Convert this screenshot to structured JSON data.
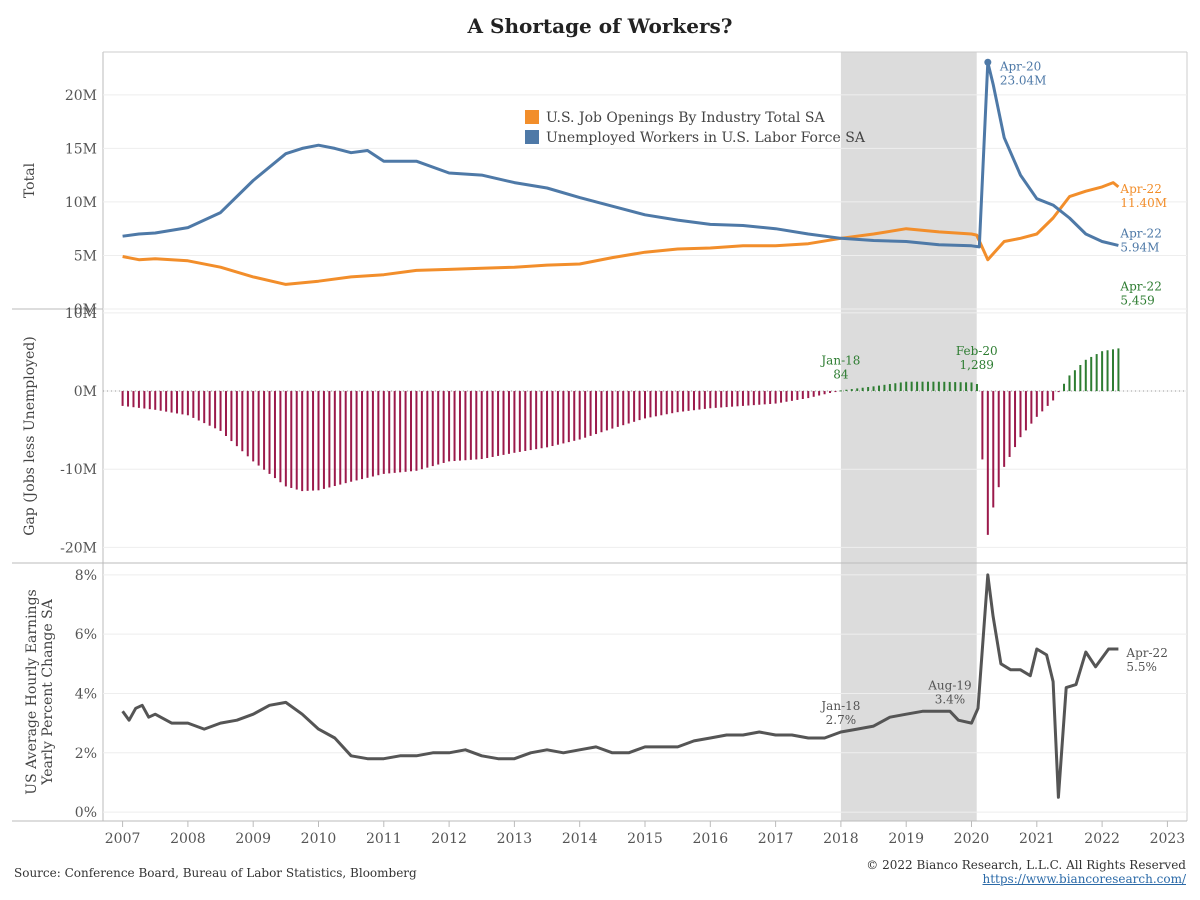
{
  "title": "A Shortage of Workers?",
  "source": "Source: Conference Board, Bureau of Labor Statistics, Bloomberg",
  "copyright": "© 2022 Bianco Research, L.L.C. All Rights Reserved",
  "website": "https://www.biancoresearch.com/",
  "colors": {
    "jobs": "#f28e2b",
    "unemployed": "#4e79a7",
    "gap_neg": "#9b1a4b",
    "gap_pos": "#2e7d32",
    "earnings": "#555555",
    "shade": "#dcdcdc"
  },
  "chart_data": [
    {
      "type": "line",
      "panel": "top",
      "ylabel": "Total",
      "ylim": [
        0,
        24
      ],
      "yticks": [
        {
          "v": 0,
          "label": "0M"
        },
        {
          "v": 5,
          "label": "5M"
        },
        {
          "v": 10,
          "label": "10M"
        },
        {
          "v": 15,
          "label": "15M"
        },
        {
          "v": 20,
          "label": "20M"
        }
      ],
      "legend_position": "top-center",
      "series": [
        {
          "name": "U.S. Job Openings By Industry Total SA",
          "color": "#f28e2b",
          "points": [
            [
              2007.0,
              4.9
            ],
            [
              2007.25,
              4.6
            ],
            [
              2007.5,
              4.7
            ],
            [
              2008.0,
              4.5
            ],
            [
              2008.5,
              3.9
            ],
            [
              2009.0,
              3.0
            ],
            [
              2009.5,
              2.3
            ],
            [
              2010.0,
              2.6
            ],
            [
              2010.5,
              3.0
            ],
            [
              2011.0,
              3.2
            ],
            [
              2011.5,
              3.6
            ],
            [
              2012.0,
              3.7
            ],
            [
              2012.5,
              3.8
            ],
            [
              2013.0,
              3.9
            ],
            [
              2013.5,
              4.1
            ],
            [
              2014.0,
              4.2
            ],
            [
              2014.5,
              4.8
            ],
            [
              2015.0,
              5.3
            ],
            [
              2015.5,
              5.6
            ],
            [
              2016.0,
              5.7
            ],
            [
              2016.5,
              5.9
            ],
            [
              2017.0,
              5.9
            ],
            [
              2017.5,
              6.1
            ],
            [
              2018.0,
              6.6
            ],
            [
              2018.5,
              7.0
            ],
            [
              2019.0,
              7.5
            ],
            [
              2019.5,
              7.2
            ],
            [
              2020.0,
              7.0
            ],
            [
              2020.08,
              6.9
            ],
            [
              2020.25,
              4.6
            ],
            [
              2020.5,
              6.3
            ],
            [
              2020.75,
              6.6
            ],
            [
              2021.0,
              7.0
            ],
            [
              2021.25,
              8.5
            ],
            [
              2021.5,
              10.5
            ],
            [
              2021.75,
              11.0
            ],
            [
              2022.0,
              11.4
            ],
            [
              2022.17,
              11.8
            ],
            [
              2022.25,
              11.4
            ]
          ]
        },
        {
          "name": "Unemployed Workers in U.S. Labor Force SA",
          "color": "#4e79a7",
          "points": [
            [
              2007.0,
              6.8
            ],
            [
              2007.25,
              7.0
            ],
            [
              2007.5,
              7.1
            ],
            [
              2008.0,
              7.6
            ],
            [
              2008.5,
              9.0
            ],
            [
              2009.0,
              12.0
            ],
            [
              2009.5,
              14.5
            ],
            [
              2009.75,
              15.0
            ],
            [
              2010.0,
              15.3
            ],
            [
              2010.25,
              15.0
            ],
            [
              2010.5,
              14.6
            ],
            [
              2010.75,
              14.8
            ],
            [
              2011.0,
              13.8
            ],
            [
              2011.5,
              13.8
            ],
            [
              2012.0,
              12.7
            ],
            [
              2012.5,
              12.5
            ],
            [
              2013.0,
              11.8
            ],
            [
              2013.5,
              11.3
            ],
            [
              2014.0,
              10.4
            ],
            [
              2014.5,
              9.6
            ],
            [
              2015.0,
              8.8
            ],
            [
              2015.5,
              8.3
            ],
            [
              2016.0,
              7.9
            ],
            [
              2016.5,
              7.8
            ],
            [
              2017.0,
              7.5
            ],
            [
              2017.5,
              7.0
            ],
            [
              2018.0,
              6.6
            ],
            [
              2018.5,
              6.4
            ],
            [
              2019.0,
              6.3
            ],
            [
              2019.5,
              6.0
            ],
            [
              2020.0,
              5.9
            ],
            [
              2020.12,
              5.8
            ],
            [
              2020.25,
              23.04
            ],
            [
              2020.33,
              21.0
            ],
            [
              2020.5,
              16.0
            ],
            [
              2020.75,
              12.5
            ],
            [
              2021.0,
              10.3
            ],
            [
              2021.25,
              9.7
            ],
            [
              2021.5,
              8.5
            ],
            [
              2021.75,
              7.0
            ],
            [
              2022.0,
              6.3
            ],
            [
              2022.25,
              5.94
            ]
          ]
        }
      ],
      "annotations": [
        {
          "x": 2020.25,
          "y": 23.04,
          "line1": "Apr-20",
          "line2": "23.04M",
          "color": "#4e79a7"
        },
        {
          "x": 2022.25,
          "y": 11.4,
          "line1": "Apr-22",
          "line2": "11.40M",
          "color": "#f28e2b"
        },
        {
          "x": 2022.25,
          "y": 5.94,
          "line1": "Apr-22",
          "line2": "5.94M",
          "color": "#4e79a7"
        }
      ]
    },
    {
      "type": "bar",
      "panel": "middle",
      "ylabel": "Gap (Jobs less Unemployed)",
      "ylim": [
        -22,
        10.5
      ],
      "yticks": [
        {
          "v": -20,
          "label": "-20M"
        },
        {
          "v": -10,
          "label": "-10M"
        },
        {
          "v": 0,
          "label": "0M"
        },
        {
          "v": 10,
          "label": "10M"
        }
      ],
      "series": [
        {
          "name": "Gap",
          "points": [
            [
              2007.0,
              -1.9
            ],
            [
              2007.5,
              -2.4
            ],
            [
              2008.0,
              -3.1
            ],
            [
              2008.5,
              -5.1
            ],
            [
              2009.0,
              -9.0
            ],
            [
              2009.5,
              -12.2
            ],
            [
              2009.75,
              -12.8
            ],
            [
              2010.0,
              -12.7
            ],
            [
              2010.5,
              -11.6
            ],
            [
              2011.0,
              -10.6
            ],
            [
              2011.5,
              -10.2
            ],
            [
              2012.0,
              -9.0
            ],
            [
              2012.5,
              -8.7
            ],
            [
              2013.0,
              -7.9
            ],
            [
              2013.5,
              -7.2
            ],
            [
              2014.0,
              -6.2
            ],
            [
              2014.5,
              -4.8
            ],
            [
              2015.0,
              -3.5
            ],
            [
              2015.5,
              -2.7
            ],
            [
              2016.0,
              -2.2
            ],
            [
              2016.5,
              -1.9
            ],
            [
              2017.0,
              -1.6
            ],
            [
              2017.5,
              -0.9
            ],
            [
              2018.0,
              0.084
            ],
            [
              2018.5,
              0.6
            ],
            [
              2019.0,
              1.2
            ],
            [
              2019.5,
              1.2
            ],
            [
              2020.0,
              1.1
            ],
            [
              2020.08,
              1.289
            ],
            [
              2020.25,
              -18.4
            ],
            [
              2020.33,
              -15.0
            ],
            [
              2020.5,
              -9.7
            ],
            [
              2020.75,
              -5.9
            ],
            [
              2021.0,
              -3.3
            ],
            [
              2021.25,
              -1.2
            ],
            [
              2021.5,
              2.0
            ],
            [
              2021.75,
              4.0
            ],
            [
              2022.0,
              5.1
            ],
            [
              2022.25,
              5.459
            ]
          ]
        }
      ],
      "annotations": [
        {
          "x": 2018.0,
          "y": 0.084,
          "line1": "Jan-18",
          "line2": "84",
          "color": "#2e7d32"
        },
        {
          "x": 2020.08,
          "y": 1.289,
          "line1": "Feb-20",
          "line2": "1,289",
          "color": "#2e7d32"
        },
        {
          "x": 2022.25,
          "y": 5.459,
          "line1": "Apr-22",
          "line2": "5,459",
          "color": "#2e7d32"
        }
      ]
    },
    {
      "type": "line",
      "panel": "bottom",
      "ylabel": "US Average Hourly Earnings Yearly Percent Change SA",
      "ylim": [
        -0.3,
        8.4
      ],
      "yticks": [
        {
          "v": 0,
          "label": "0%"
        },
        {
          "v": 2,
          "label": "2%"
        },
        {
          "v": 4,
          "label": "4%"
        },
        {
          "v": 6,
          "label": "6%"
        },
        {
          "v": 8,
          "label": "8%"
        }
      ],
      "series": [
        {
          "name": "US Average Hourly Earnings Yearly Percent Change SA",
          "color": "#555555",
          "points": [
            [
              2007.0,
              3.4
            ],
            [
              2007.1,
              3.1
            ],
            [
              2007.2,
              3.5
            ],
            [
              2007.3,
              3.6
            ],
            [
              2007.4,
              3.2
            ],
            [
              2007.5,
              3.3
            ],
            [
              2007.75,
              3.0
            ],
            [
              2008.0,
              3.0
            ],
            [
              2008.25,
              2.8
            ],
            [
              2008.5,
              3.0
            ],
            [
              2008.75,
              3.1
            ],
            [
              2009.0,
              3.3
            ],
            [
              2009.25,
              3.6
            ],
            [
              2009.5,
              3.7
            ],
            [
              2009.75,
              3.3
            ],
            [
              2010.0,
              2.8
            ],
            [
              2010.25,
              2.5
            ],
            [
              2010.5,
              1.9
            ],
            [
              2010.75,
              1.8
            ],
            [
              2011.0,
              1.8
            ],
            [
              2011.25,
              1.9
            ],
            [
              2011.5,
              1.9
            ],
            [
              2011.75,
              2.0
            ],
            [
              2012.0,
              2.0
            ],
            [
              2012.25,
              2.1
            ],
            [
              2012.5,
              1.9
            ],
            [
              2012.75,
              1.8
            ],
            [
              2013.0,
              1.8
            ],
            [
              2013.25,
              2.0
            ],
            [
              2013.5,
              2.1
            ],
            [
              2013.75,
              2.0
            ],
            [
              2014.0,
              2.1
            ],
            [
              2014.25,
              2.2
            ],
            [
              2014.5,
              2.0
            ],
            [
              2014.75,
              2.0
            ],
            [
              2015.0,
              2.2
            ],
            [
              2015.25,
              2.2
            ],
            [
              2015.5,
              2.2
            ],
            [
              2015.75,
              2.4
            ],
            [
              2016.0,
              2.5
            ],
            [
              2016.25,
              2.6
            ],
            [
              2016.5,
              2.6
            ],
            [
              2016.75,
              2.7
            ],
            [
              2017.0,
              2.6
            ],
            [
              2017.25,
              2.6
            ],
            [
              2017.5,
              2.5
            ],
            [
              2017.75,
              2.5
            ],
            [
              2018.0,
              2.7
            ],
            [
              2018.25,
              2.8
            ],
            [
              2018.5,
              2.9
            ],
            [
              2018.75,
              3.2
            ],
            [
              2019.0,
              3.3
            ],
            [
              2019.25,
              3.4
            ],
            [
              2019.5,
              3.4
            ],
            [
              2019.67,
              3.4
            ],
            [
              2019.8,
              3.1
            ],
            [
              2020.0,
              3.0
            ],
            [
              2020.1,
              3.5
            ],
            [
              2020.25,
              8.0
            ],
            [
              2020.33,
              6.6
            ],
            [
              2020.45,
              5.0
            ],
            [
              2020.6,
              4.8
            ],
            [
              2020.75,
              4.8
            ],
            [
              2020.9,
              4.6
            ],
            [
              2021.0,
              5.5
            ],
            [
              2021.15,
              5.3
            ],
            [
              2021.25,
              4.4
            ],
            [
              2021.33,
              0.5
            ],
            [
              2021.45,
              4.2
            ],
            [
              2021.6,
              4.3
            ],
            [
              2021.75,
              5.4
            ],
            [
              2021.9,
              4.9
            ],
            [
              2022.0,
              5.2
            ],
            [
              2022.1,
              5.5
            ],
            [
              2022.25,
              5.5
            ]
          ]
        }
      ],
      "annotations": [
        {
          "x": 2018.0,
          "y": 2.7,
          "line1": "Jan-18",
          "line2": "2.7%",
          "color": "#555555"
        },
        {
          "x": 2019.67,
          "y": 3.4,
          "line1": "Aug-19",
          "line2": "3.4%",
          "color": "#555555"
        },
        {
          "x": 2022.25,
          "y": 5.5,
          "line1": "Apr-22",
          "line2": "5.5%",
          "color": "#555555"
        }
      ]
    }
  ],
  "shaded_region": {
    "x_start": 2018.0,
    "x_end": 2020.08
  },
  "x_axis": {
    "xlim": [
      2006.7,
      2023.3
    ],
    "ticks": [
      2007,
      2008,
      2009,
      2010,
      2011,
      2012,
      2013,
      2014,
      2015,
      2016,
      2017,
      2018,
      2019,
      2020,
      2021,
      2022,
      2023
    ],
    "labels": [
      "2007",
      "2008",
      "2009",
      "2010",
      "2011",
      "2012",
      "2013",
      "2014",
      "2015",
      "2016",
      "2017",
      "2018",
      "2019",
      "2020",
      "2021",
      "2022",
      "2023"
    ]
  }
}
